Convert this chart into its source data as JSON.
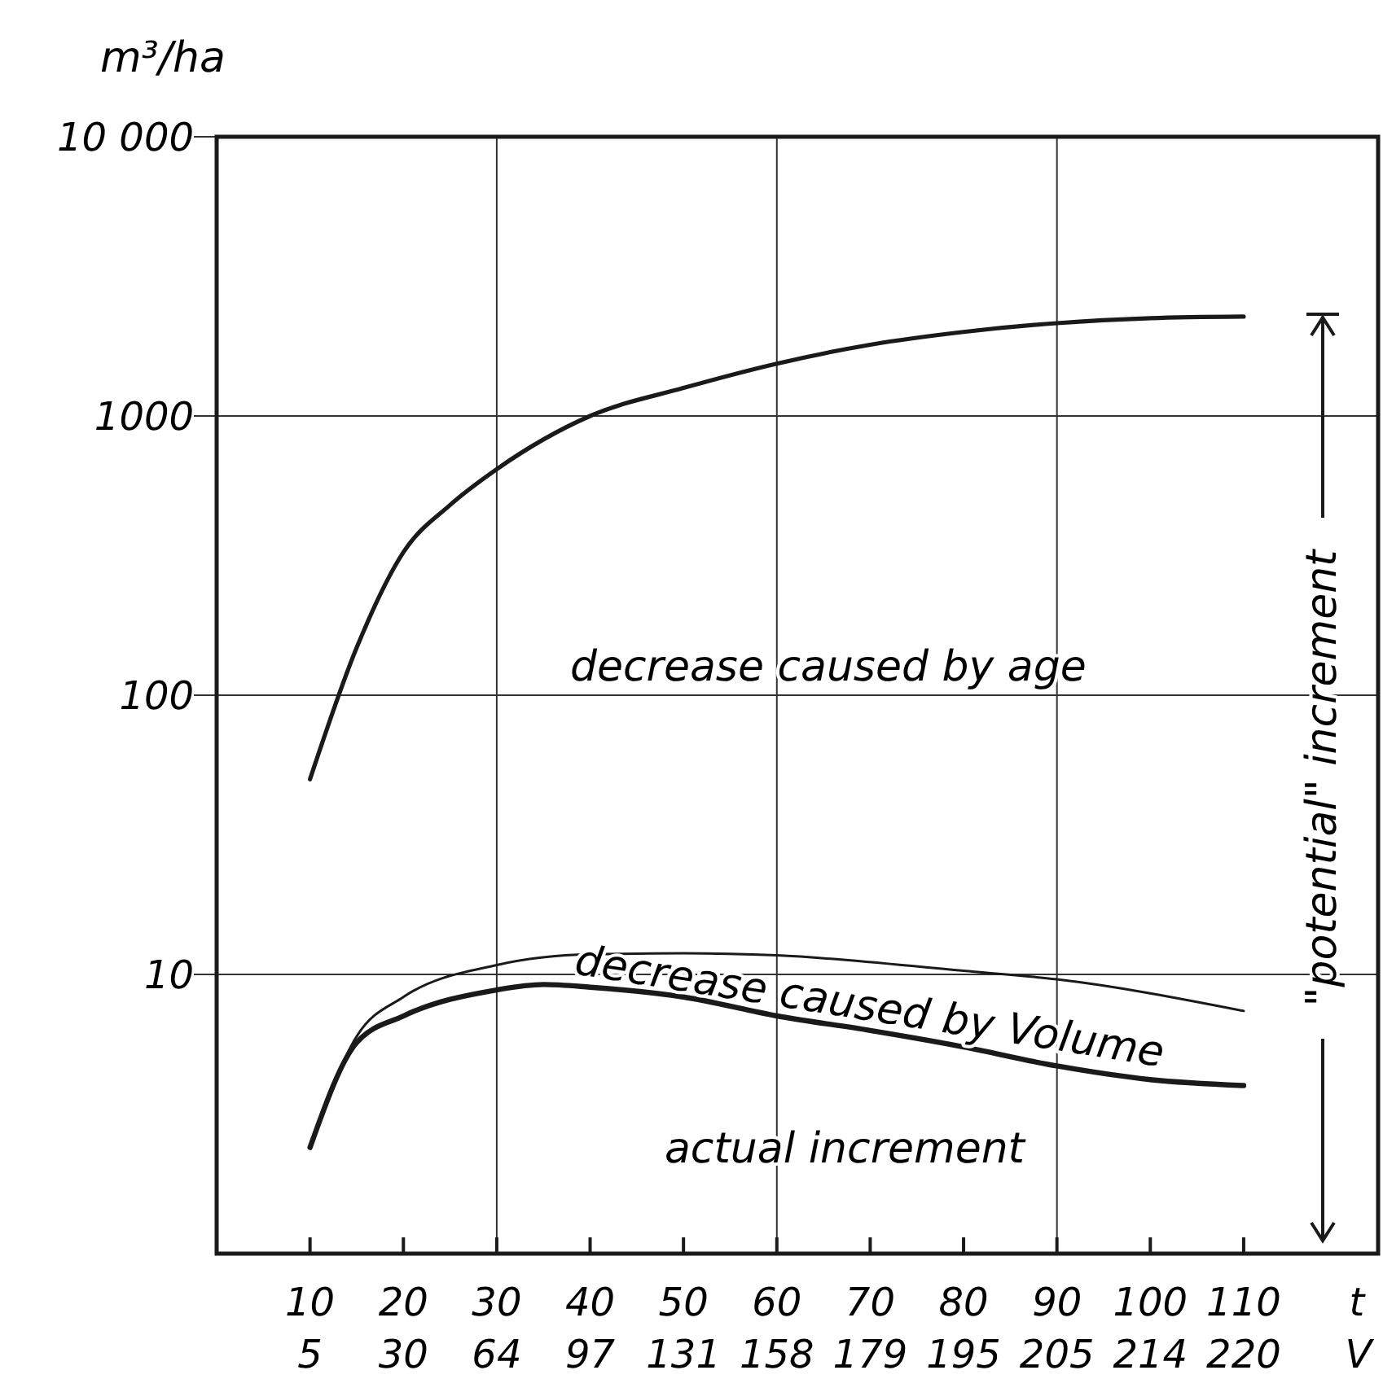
{
  "chart_data": {
    "type": "line",
    "ylabel": "m³/ha",
    "xlabel": "t",
    "xlim": [
      0,
      124.4
    ],
    "xticks": [
      10,
      20,
      30,
      40,
      50,
      60,
      70,
      80,
      90,
      100,
      110
    ],
    "log": "y",
    "ylim": [
      1,
      10000
    ],
    "yticks": [
      10,
      100,
      1000,
      {
        "value": 10000,
        "label": "10 000"
      }
    ],
    "grid": "y",
    "marker": "none",
    "ref_lines": [
      {
        "axis": "x",
        "value": 30,
        "color": "#333333"
      },
      {
        "axis": "x",
        "value": 60,
        "color": "#333333"
      },
      {
        "axis": "x",
        "value": 90,
        "color": "#333333"
      }
    ],
    "series": [
      {
        "color": "#1a1a1a",
        "x": [
          10,
          15,
          20,
          25,
          30,
          40,
          50,
          60,
          70,
          80,
          90,
          100,
          110
        ],
        "values": [
          50,
          148,
          325,
          480,
          645,
          1000,
          1260,
          1540,
          1800,
          2000,
          2150,
          2240,
          2270
        ]
      },
      {
        "color": "#1a1a1a",
        "x": [
          10,
          15,
          20,
          30,
          40,
          50,
          60,
          80,
          90,
          110
        ],
        "values": [
          2.4,
          6.0,
          8.3,
          10.8,
          11.8,
          11.9,
          11.7,
          10.3,
          9.6,
          7.4
        ]
      },
      {
        "color": "#1a1a1a",
        "x": [
          10,
          15,
          20,
          30,
          35,
          40,
          50,
          60,
          70,
          80,
          90,
          100,
          110
        ],
        "values": [
          2.4,
          5.7,
          7.1,
          8.8,
          9.2,
          9.0,
          8.3,
          7.1,
          6.3,
          5.5,
          4.7,
          4.2,
          4.0
        ]
      }
    ],
    "annotations": [
      "decrease caused by age",
      "decrease caused by Volume",
      "actual increment",
      "\"potential\" increment",
      "V",
      "5",
      "30",
      "64",
      "97",
      "131",
      "158",
      "179",
      "195",
      "205",
      "214",
      "220"
    ]
  }
}
